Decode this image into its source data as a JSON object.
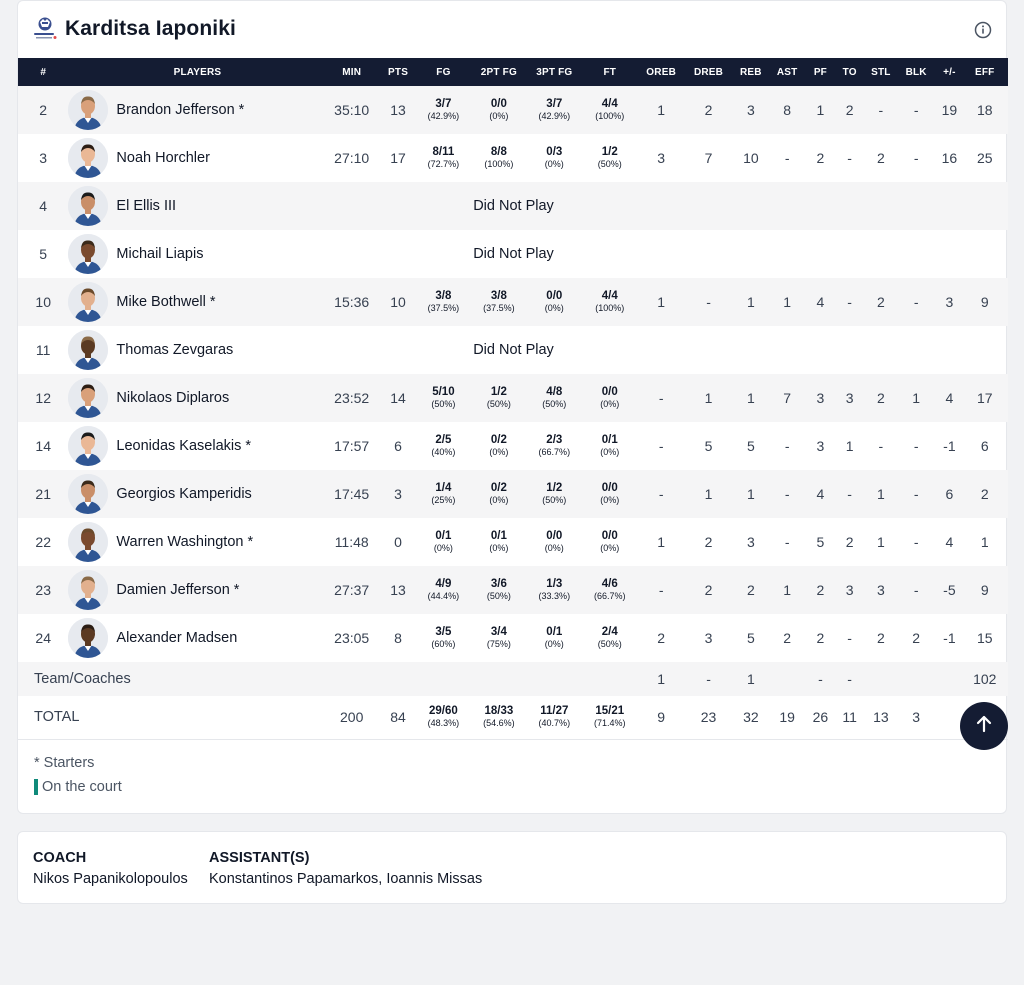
{
  "team": {
    "name": "Karditsa Iaponiki",
    "logo_icon": "karditsa-club-crest-icon",
    "info_icon": "info-circle-icon"
  },
  "table": {
    "columns": [
      "#",
      "PLAYERS",
      "MIN",
      "PTS",
      "FG",
      "2PT FG",
      "3PT FG",
      "FT",
      "OREB",
      "DREB",
      "REB",
      "AST",
      "PF",
      "TO",
      "STL",
      "BLK",
      "+/-",
      "EFF"
    ],
    "players": [
      {
        "no": "2",
        "name": "Brandon Jefferson *",
        "min": "35:10",
        "pts": "13",
        "fg": [
          "3/7",
          "(42.9%)"
        ],
        "fg2": [
          "0/0",
          "(0%)"
        ],
        "fg3": [
          "3/7",
          "(42.9%)"
        ],
        "ft": [
          "4/4",
          "(100%)"
        ],
        "oreb": "1",
        "dreb": "2",
        "reb": "3",
        "ast": "8",
        "pf": "1",
        "to": "2",
        "stl": "-",
        "blk": "-",
        "pm": "19",
        "eff": "18"
      },
      {
        "no": "3",
        "name": "Noah Horchler",
        "min": "27:10",
        "pts": "17",
        "fg": [
          "8/11",
          "(72.7%)"
        ],
        "fg2": [
          "8/8",
          "(100%)"
        ],
        "fg3": [
          "0/3",
          "(0%)"
        ],
        "ft": [
          "1/2",
          "(50%)"
        ],
        "oreb": "3",
        "dreb": "7",
        "reb": "10",
        "ast": "-",
        "pf": "2",
        "to": "-",
        "stl": "2",
        "blk": "-",
        "pm": "16",
        "eff": "25"
      },
      {
        "no": "4",
        "name": "El Ellis III",
        "dnp": "Did Not Play"
      },
      {
        "no": "5",
        "name": "Michail Liapis",
        "dnp": "Did Not Play"
      },
      {
        "no": "10",
        "name": "Mike Bothwell *",
        "min": "15:36",
        "pts": "10",
        "fg": [
          "3/8",
          "(37.5%)"
        ],
        "fg2": [
          "3/8",
          "(37.5%)"
        ],
        "fg3": [
          "0/0",
          "(0%)"
        ],
        "ft": [
          "4/4",
          "(100%)"
        ],
        "oreb": "1",
        "dreb": "-",
        "reb": "1",
        "ast": "1",
        "pf": "4",
        "to": "-",
        "stl": "2",
        "blk": "-",
        "pm": "3",
        "eff": "9"
      },
      {
        "no": "11",
        "name": "Thomas Zevgaras",
        "dnp": "Did Not Play"
      },
      {
        "no": "12",
        "name": "Nikolaos Diplaros",
        "min": "23:52",
        "pts": "14",
        "fg": [
          "5/10",
          "(50%)"
        ],
        "fg2": [
          "1/2",
          "(50%)"
        ],
        "fg3": [
          "4/8",
          "(50%)"
        ],
        "ft": [
          "0/0",
          "(0%)"
        ],
        "oreb": "-",
        "dreb": "1",
        "reb": "1",
        "ast": "7",
        "pf": "3",
        "to": "3",
        "stl": "2",
        "blk": "1",
        "pm": "4",
        "eff": "17"
      },
      {
        "no": "14",
        "name": "Leonidas Kaselakis *",
        "min": "17:57",
        "pts": "6",
        "fg": [
          "2/5",
          "(40%)"
        ],
        "fg2": [
          "0/2",
          "(0%)"
        ],
        "fg3": [
          "2/3",
          "(66.7%)"
        ],
        "ft": [
          "0/1",
          "(0%)"
        ],
        "oreb": "-",
        "dreb": "5",
        "reb": "5",
        "ast": "-",
        "pf": "3",
        "to": "1",
        "stl": "-",
        "blk": "-",
        "pm": "-1",
        "eff": "6"
      },
      {
        "no": "21",
        "name": "Georgios Kamperidis",
        "min": "17:45",
        "pts": "3",
        "fg": [
          "1/4",
          "(25%)"
        ],
        "fg2": [
          "0/2",
          "(0%)"
        ],
        "fg3": [
          "1/2",
          "(50%)"
        ],
        "ft": [
          "0/0",
          "(0%)"
        ],
        "oreb": "-",
        "dreb": "1",
        "reb": "1",
        "ast": "-",
        "pf": "4",
        "to": "-",
        "stl": "1",
        "blk": "-",
        "pm": "6",
        "eff": "2"
      },
      {
        "no": "22",
        "name": "Warren Washington *",
        "min": "11:48",
        "pts": "0",
        "fg": [
          "0/1",
          "(0%)"
        ],
        "fg2": [
          "0/1",
          "(0%)"
        ],
        "fg3": [
          "0/0",
          "(0%)"
        ],
        "ft": [
          "0/0",
          "(0%)"
        ],
        "oreb": "1",
        "dreb": "2",
        "reb": "3",
        "ast": "-",
        "pf": "5",
        "to": "2",
        "stl": "1",
        "blk": "-",
        "pm": "4",
        "eff": "1"
      },
      {
        "no": "23",
        "name": "Damien Jefferson *",
        "min": "27:37",
        "pts": "13",
        "fg": [
          "4/9",
          "(44.4%)"
        ],
        "fg2": [
          "3/6",
          "(50%)"
        ],
        "fg3": [
          "1/3",
          "(33.3%)"
        ],
        "ft": [
          "4/6",
          "(66.7%)"
        ],
        "oreb": "-",
        "dreb": "2",
        "reb": "2",
        "ast": "1",
        "pf": "2",
        "to": "3",
        "stl": "3",
        "blk": "-",
        "pm": "-5",
        "eff": "9"
      },
      {
        "no": "24",
        "name": "Alexander Madsen",
        "min": "23:05",
        "pts": "8",
        "fg": [
          "3/5",
          "(60%)"
        ],
        "fg2": [
          "3/4",
          "(75%)"
        ],
        "fg3": [
          "0/1",
          "(0%)"
        ],
        "ft": [
          "2/4",
          "(50%)"
        ],
        "oreb": "2",
        "dreb": "3",
        "reb": "5",
        "ast": "2",
        "pf": "2",
        "to": "-",
        "stl": "2",
        "blk": "2",
        "pm": "-1",
        "eff": "15"
      }
    ],
    "team_row": {
      "label": "Team/Coaches",
      "oreb": "1",
      "dreb": "-",
      "reb": "1",
      "pf": "-",
      "to": "-",
      "eff": "102"
    },
    "total_row": {
      "label": "TOTAL",
      "min": "200",
      "pts": "84",
      "fg": [
        "29/60",
        "(48.3%)"
      ],
      "fg2": [
        "18/33",
        "(54.6%)"
      ],
      "fg3": [
        "11/27",
        "(40.7%)"
      ],
      "ft": [
        "15/21",
        "(71.4%)"
      ],
      "oreb": "9",
      "dreb": "23",
      "reb": "32",
      "ast": "19",
      "pf": "26",
      "to": "11",
      "stl": "13",
      "blk": "3"
    }
  },
  "legend": {
    "starters": "* Starters",
    "on_court": "On the court",
    "on_court_color": "#0f8a7a"
  },
  "scroll_top": {
    "icon": "arrow-up-icon"
  },
  "coaching": {
    "coach_label": "COACH",
    "coach_name": "Nikos Papanikolopoulos",
    "assistants_label": "ASSISTANT(S)",
    "assistants_names": "Konstantinos Papamarkos, Ioannis Missas"
  },
  "colors": {
    "header_bg": "#141c33",
    "alt_row_bg": "#f5f5f6",
    "page_bg": "#f1f2f4"
  }
}
